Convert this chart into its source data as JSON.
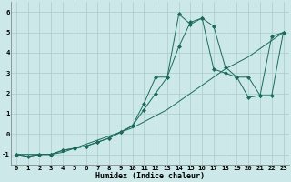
{
  "xlabel": "Humidex (Indice chaleur)",
  "bg_color": "#cce8e8",
  "grid_color": "#aacccc",
  "line_color": "#1a6b5a",
  "xlim": [
    -0.5,
    23.5
  ],
  "ylim": [
    -1.5,
    6.5
  ],
  "yticks": [
    -1,
    0,
    1,
    2,
    3,
    4,
    5,
    6
  ],
  "xticks": [
    0,
    1,
    2,
    3,
    4,
    5,
    6,
    7,
    8,
    9,
    10,
    11,
    12,
    13,
    14,
    15,
    16,
    17,
    18,
    19,
    20,
    21,
    22,
    23
  ],
  "line1_x": [
    0,
    1,
    2,
    3,
    4,
    5,
    6,
    7,
    8,
    9,
    10,
    11,
    12,
    13,
    14,
    15,
    16,
    17,
    18,
    19,
    20,
    21,
    22,
    23
  ],
  "line1_y": [
    -1.0,
    -1.1,
    -1.0,
    -1.0,
    -0.9,
    -0.7,
    -0.5,
    -0.3,
    -0.1,
    0.1,
    0.3,
    0.6,
    0.9,
    1.2,
    1.6,
    2.0,
    2.4,
    2.8,
    3.2,
    3.5,
    3.8,
    4.2,
    4.6,
    5.0
  ],
  "line2_x": [
    0,
    1,
    2,
    3,
    4,
    5,
    6,
    7,
    8,
    9,
    10,
    11,
    12,
    13,
    14,
    15,
    16,
    17,
    18,
    19,
    20,
    21,
    22,
    23
  ],
  "line2_y": [
    -1.0,
    -1.1,
    -1.0,
    -1.0,
    -0.8,
    -0.7,
    -0.6,
    -0.4,
    -0.2,
    0.1,
    0.4,
    1.5,
    2.8,
    2.8,
    5.9,
    5.4,
    5.7,
    3.2,
    3.0,
    2.8,
    1.8,
    1.9,
    4.8,
    5.0
  ],
  "line3_x": [
    0,
    2,
    3,
    4,
    5,
    6,
    7,
    8,
    9,
    10,
    11,
    12,
    13,
    14,
    15,
    16,
    17,
    18,
    19,
    20,
    21,
    22,
    23
  ],
  "line3_y": [
    -1.0,
    -1.0,
    -1.0,
    -0.8,
    -0.7,
    -0.6,
    -0.4,
    -0.2,
    0.1,
    0.4,
    1.2,
    2.0,
    2.8,
    4.3,
    5.5,
    5.7,
    5.3,
    3.3,
    2.8,
    2.8,
    1.9,
    1.9,
    5.0
  ]
}
